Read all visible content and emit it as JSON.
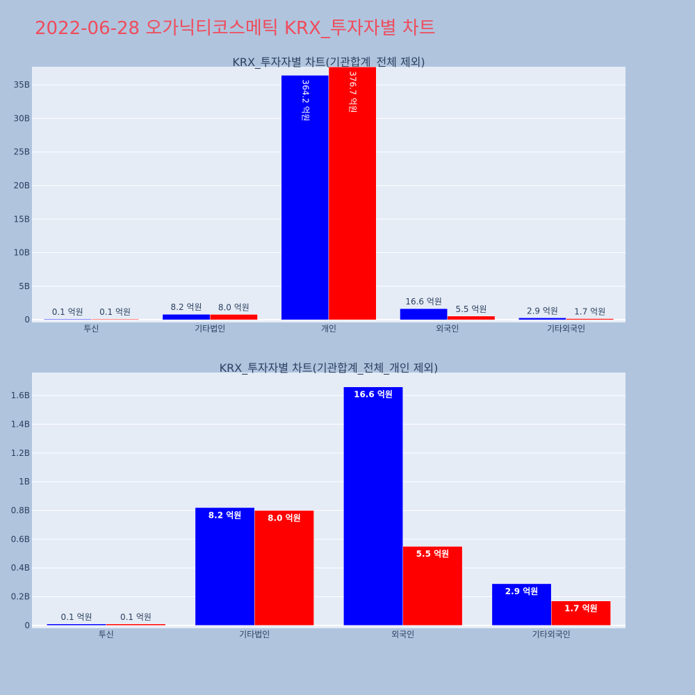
{
  "page_title": "2022-06-28 오가닉티코스메틱 KRX_투자자별 차트",
  "colors": {
    "background": "#b0c4de",
    "plot_background": "#e5ecf6",
    "grid": "#ffffff",
    "title": "#ef4c5c",
    "subtitle": "#2a3f5f",
    "tick": "#2a3f5f",
    "buy": "#0000ff",
    "sell": "#ff0000"
  },
  "chart_data": [
    {
      "type": "bar",
      "title": "KRX_투자자별 차트(기관합계_전체 제외)",
      "categories": [
        "투신",
        "기타법인",
        "개인",
        "외국인",
        "기타외국인"
      ],
      "series": [
        {
          "values": [
            10000000,
            820000000,
            36420000000,
            1660000000,
            290000000
          ],
          "labels": [
            "0.1 억원",
            "8.2 억원",
            "364.2 억원",
            "16.6 억원",
            "2.9 억원"
          ]
        },
        {
          "values": [
            10000000,
            800000000,
            37670000000,
            550000000,
            170000000
          ],
          "labels": [
            "0.1 억원",
            "8.0 억원",
            "376.7 억원",
            "5.5 억원",
            "1.7 억원"
          ]
        }
      ],
      "ylim": [
        -400000000,
        37700000000
      ],
      "yticks": [
        {
          "value": 0,
          "label": "0"
        },
        {
          "value": 5000000000,
          "label": "5B"
        },
        {
          "value": 10000000000,
          "label": "10B"
        },
        {
          "value": 15000000000,
          "label": "15B"
        },
        {
          "value": 20000000000,
          "label": "20B"
        },
        {
          "value": 25000000000,
          "label": "25B"
        },
        {
          "value": 30000000000,
          "label": "30B"
        },
        {
          "value": 35000000000,
          "label": "35B"
        }
      ],
      "grid": true
    },
    {
      "type": "bar",
      "title": "KRX_투자자별 차트(기관합계_전체_개인 제외)",
      "categories": [
        "투신",
        "기타법인",
        "외국인",
        "기타외국인"
      ],
      "series": [
        {
          "values": [
            10000000,
            820000000,
            1660000000,
            290000000
          ],
          "labels": [
            "0.1 억원",
            "8.2 억원",
            "16.6 억원",
            "2.9 억원"
          ]
        },
        {
          "values": [
            10000000,
            800000000,
            550000000,
            170000000
          ],
          "labels": [
            "0.1 억원",
            "8.0 억원",
            "5.5 억원",
            "1.7 억원"
          ]
        }
      ],
      "ylim": [
        -20000000,
        1760000000
      ],
      "yticks": [
        {
          "value": 0,
          "label": "0"
        },
        {
          "value": 200000000,
          "label": "0.2B"
        },
        {
          "value": 400000000,
          "label": "0.4B"
        },
        {
          "value": 600000000,
          "label": "0.6B"
        },
        {
          "value": 800000000,
          "label": "0.8B"
        },
        {
          "value": 1000000000,
          "label": "1B"
        },
        {
          "value": 1200000000,
          "label": "1.2B"
        },
        {
          "value": 1400000000,
          "label": "1.4B"
        },
        {
          "value": 1600000000,
          "label": "1.6B"
        }
      ],
      "grid": true
    }
  ]
}
